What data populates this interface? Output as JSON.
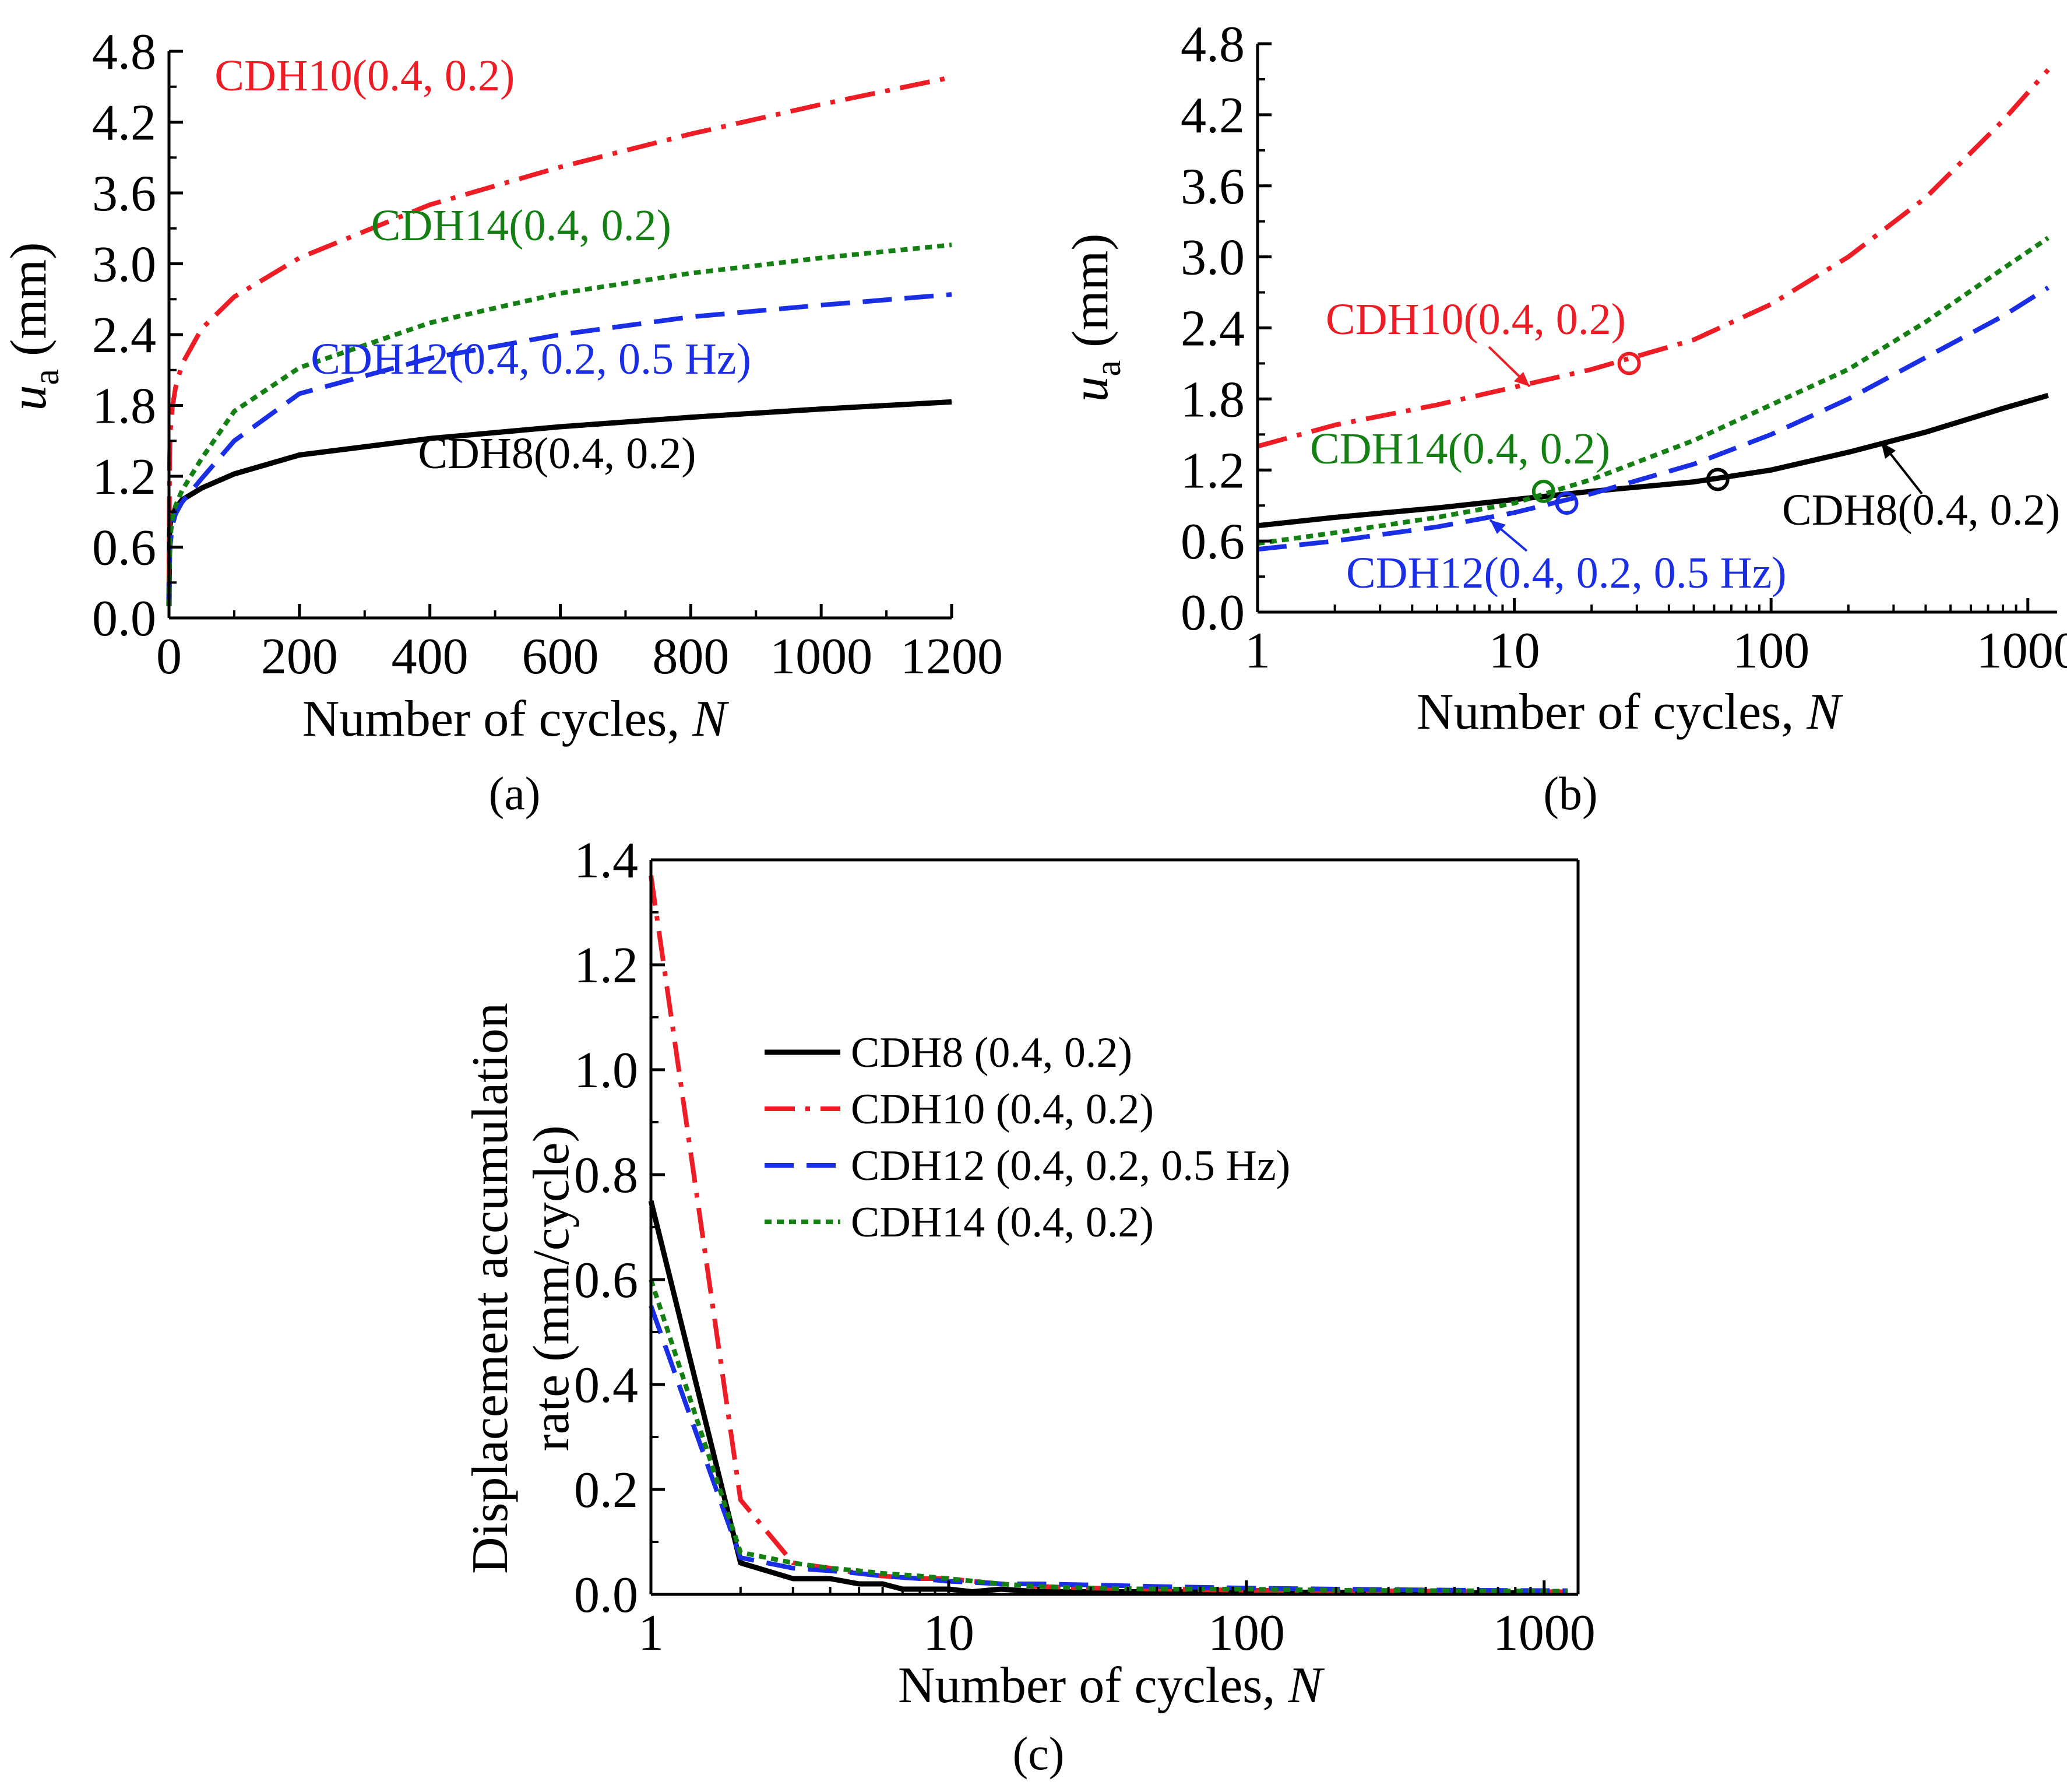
{
  "colors": {
    "black": "#000000",
    "red": "#ee1c25",
    "blue": "#1a2ee6",
    "green": "#148014"
  },
  "chart_data": [
    {
      "panel": "(a)",
      "type": "line",
      "xlabel": "Number of cycles, ",
      "xlabel_var": "N",
      "ylabel_var": "u",
      "ylabel_sub": "a",
      "ylabel_unit": " (mm)",
      "xlim": [
        0,
        1200
      ],
      "ylim": [
        0,
        4.8
      ],
      "xticks": [
        "0",
        "200",
        "400",
        "600",
        "800",
        "1000",
        "1200"
      ],
      "yticks": [
        "0.0",
        "0.6",
        "1.2",
        "1.8",
        "2.4",
        "3.0",
        "3.6",
        "4.2",
        "4.8"
      ],
      "series": [
        {
          "name": "CDH8(0.4, 0.2)",
          "color": "#000000",
          "dash": "solid",
          "x": [
            0,
            1,
            2,
            5,
            10,
            20,
            50,
            100,
            200,
            400,
            600,
            800,
            1000,
            1200
          ],
          "y": [
            0.1,
            0.75,
            0.8,
            0.86,
            0.93,
            1.0,
            1.1,
            1.22,
            1.38,
            1.52,
            1.62,
            1.7,
            1.77,
            1.83
          ]
        },
        {
          "name": "CDH10(0.4, 0.2)",
          "color": "#ee1c25",
          "dash": "dashdot",
          "x": [
            0,
            1,
            2,
            5,
            10,
            20,
            50,
            100,
            200,
            400,
            600,
            800,
            1000,
            1200
          ],
          "y": [
            0.3,
            1.37,
            1.57,
            1.78,
            1.95,
            2.15,
            2.45,
            2.72,
            3.05,
            3.5,
            3.82,
            4.1,
            4.35,
            4.58
          ]
        },
        {
          "name": "CDH12(0.4, 0.2, 0.5 Hz)",
          "color": "#1a2ee6",
          "dash": "dash",
          "x": [
            0,
            1,
            2,
            5,
            10,
            20,
            50,
            100,
            200,
            400,
            600,
            800,
            1000,
            1200
          ],
          "y": [
            0.1,
            0.52,
            0.62,
            0.78,
            0.88,
            0.98,
            1.18,
            1.5,
            1.9,
            2.2,
            2.4,
            2.55,
            2.65,
            2.74
          ]
        },
        {
          "name": "CDH14(0.4, 0.2)",
          "color": "#148014",
          "dash": "dot",
          "x": [
            0,
            1,
            2,
            5,
            10,
            20,
            50,
            100,
            200,
            400,
            600,
            800,
            1000,
            1200
          ],
          "y": [
            0.1,
            0.58,
            0.68,
            0.84,
            0.95,
            1.08,
            1.35,
            1.75,
            2.12,
            2.5,
            2.75,
            2.92,
            3.05,
            3.16
          ]
        }
      ],
      "annotations": [
        {
          "text": "CDH10(0.4, 0.2)",
          "color": "#ee1c25",
          "x": 300,
          "y": 4.47
        },
        {
          "text": "CDH14(0.4, 0.2)",
          "color": "#148014",
          "x": 540,
          "y": 3.2
        },
        {
          "text": "CDH12(0.4, 0.2, 0.5 Hz)",
          "color": "#1a2ee6",
          "x": 555,
          "y": 2.07
        },
        {
          "text": "CDH8(0.4, 0.2)",
          "color": "#000000",
          "x": 595,
          "y": 1.27
        }
      ]
    },
    {
      "panel": "(b)",
      "type": "line",
      "xscale": "log",
      "xlabel": "Number of cycles, ",
      "xlabel_var": "N",
      "ylabel_var": "u",
      "ylabel_sub": "a",
      "ylabel_unit": "  (mm)",
      "xlim": [
        1,
        1300
      ],
      "ylim": [
        0,
        4.8
      ],
      "xtick_values": [
        1,
        10,
        100,
        1000
      ],
      "xticks": [
        "1",
        "10",
        "100",
        "1000"
      ],
      "yticks": [
        "0.0",
        "0.6",
        "1.2",
        "1.8",
        "2.4",
        "3.0",
        "3.6",
        "4.2",
        "4.8"
      ],
      "series": [
        {
          "name": "CDH8(0.4, 0.2)",
          "color": "#000000",
          "dash": "solid",
          "x": [
            1,
            2,
            5,
            10,
            20,
            50,
            100,
            200,
            400,
            800,
            1200
          ],
          "y": [
            0.73,
            0.8,
            0.88,
            0.95,
            1.02,
            1.1,
            1.2,
            1.35,
            1.52,
            1.72,
            1.83
          ]
        },
        {
          "name": "CDH10(0.4, 0.2)",
          "color": "#ee1c25",
          "dash": "dashdot",
          "x": [
            1,
            2,
            5,
            10,
            20,
            50,
            100,
            200,
            400,
            800,
            1200
          ],
          "y": [
            1.4,
            1.58,
            1.75,
            1.9,
            2.05,
            2.3,
            2.6,
            3.0,
            3.5,
            4.15,
            4.58
          ]
        },
        {
          "name": "CDH12(0.4, 0.2, 0.5 Hz)",
          "color": "#1a2ee6",
          "dash": "dash",
          "x": [
            1,
            2,
            5,
            10,
            20,
            50,
            100,
            200,
            400,
            800,
            1200
          ],
          "y": [
            0.53,
            0.6,
            0.72,
            0.84,
            1.0,
            1.25,
            1.5,
            1.8,
            2.15,
            2.5,
            2.74
          ]
        },
        {
          "name": "CDH14(0.4, 0.2)",
          "color": "#148014",
          "dash": "dot",
          "x": [
            1,
            2,
            5,
            10,
            20,
            50,
            100,
            200,
            400,
            800,
            1200
          ],
          "y": [
            0.58,
            0.67,
            0.8,
            0.92,
            1.12,
            1.45,
            1.75,
            2.05,
            2.45,
            2.9,
            3.16
          ]
        }
      ],
      "markers": [
        {
          "color": "#ee1c25",
          "x": 28,
          "y": 2.1
        },
        {
          "color": "#148014",
          "x": 13,
          "y": 1.02
        },
        {
          "color": "#1a2ee6",
          "x": 16,
          "y": 0.92
        },
        {
          "color": "#000000",
          "x": 62,
          "y": 1.12
        }
      ],
      "annotations": [
        {
          "text": "CDH10(0.4, 0.2)",
          "color": "#ee1c25"
        },
        {
          "text": "CDH14(0.4, 0.2)",
          "color": "#148014"
        },
        {
          "text": "CDH12(0.4, 0.2, 0.5 Hz)",
          "color": "#1a2ee6"
        },
        {
          "text": "CDH8(0.4, 0.2)",
          "color": "#000000"
        }
      ]
    },
    {
      "panel": "(c)",
      "type": "line",
      "xscale": "log",
      "xlabel": "Number of cycles, ",
      "xlabel_var": "N",
      "ylabel_line1": "Displacement accumulation",
      "ylabel_line2": "rate (mm/cycle)",
      "xlim": [
        1,
        1300
      ],
      "ylim": [
        0,
        1.4
      ],
      "xtick_values": [
        1,
        10,
        100,
        1000
      ],
      "xticks": [
        "1",
        "10",
        "100",
        "1000"
      ],
      "yticks": [
        "0.0",
        "0.2",
        "0.4",
        "0.6",
        "0.8",
        "1.0",
        "1.2",
        "1.4"
      ],
      "legend": [
        "CDH8 (0.4, 0.2)",
        "CDH10 (0.4, 0.2)",
        "CDH12 (0.4, 0.2, 0.5 Hz)",
        "CDH14 (0.4, 0.2)"
      ],
      "series": [
        {
          "name": "CDH8 (0.4, 0.2)",
          "color": "#000000",
          "dash": "solid",
          "x": [
            1,
            2,
            3,
            4,
            5,
            6,
            7,
            8,
            9,
            10,
            12,
            15,
            20,
            30,
            50,
            100,
            200,
            500,
            1200
          ],
          "y": [
            0.75,
            0.06,
            0.03,
            0.03,
            0.02,
            0.02,
            0.01,
            0.01,
            0.01,
            0.01,
            0.005,
            0.01,
            0.005,
            0.005,
            0.005,
            0.004,
            0.004,
            0.003,
            0.003
          ]
        },
        {
          "name": "CDH10 (0.4, 0.2)",
          "color": "#ee1c25",
          "dash": "dashdot",
          "x": [
            1,
            2,
            3,
            4,
            5,
            6,
            8,
            10,
            12,
            15,
            20,
            30,
            50,
            100,
            200,
            500,
            1200
          ],
          "y": [
            1.37,
            0.18,
            0.06,
            0.05,
            0.04,
            0.035,
            0.03,
            0.03,
            0.025,
            0.02,
            0.015,
            0.012,
            0.01,
            0.008,
            0.007,
            0.006,
            0.005
          ]
        },
        {
          "name": "CDH12 (0.4, 0.2, 0.5 Hz)",
          "color": "#1a2ee6",
          "dash": "dash",
          "x": [
            1,
            2,
            3,
            4,
            5,
            6,
            8,
            10,
            15,
            20,
            30,
            50,
            100,
            200,
            500,
            1200
          ],
          "y": [
            0.55,
            0.07,
            0.05,
            0.045,
            0.04,
            0.035,
            0.03,
            0.025,
            0.02,
            0.02,
            0.018,
            0.015,
            0.012,
            0.01,
            0.008,
            0.007
          ]
        },
        {
          "name": "CDH14 (0.4, 0.2)",
          "color": "#148014",
          "dash": "dot",
          "x": [
            1,
            2,
            3,
            4,
            5,
            6,
            8,
            10,
            15,
            20,
            30,
            50,
            100,
            200,
            500,
            1200
          ],
          "y": [
            0.6,
            0.08,
            0.06,
            0.05,
            0.045,
            0.04,
            0.035,
            0.03,
            0.02,
            0.015,
            0.012,
            0.01,
            0.01,
            0.008,
            0.007,
            0.006
          ]
        }
      ]
    }
  ]
}
